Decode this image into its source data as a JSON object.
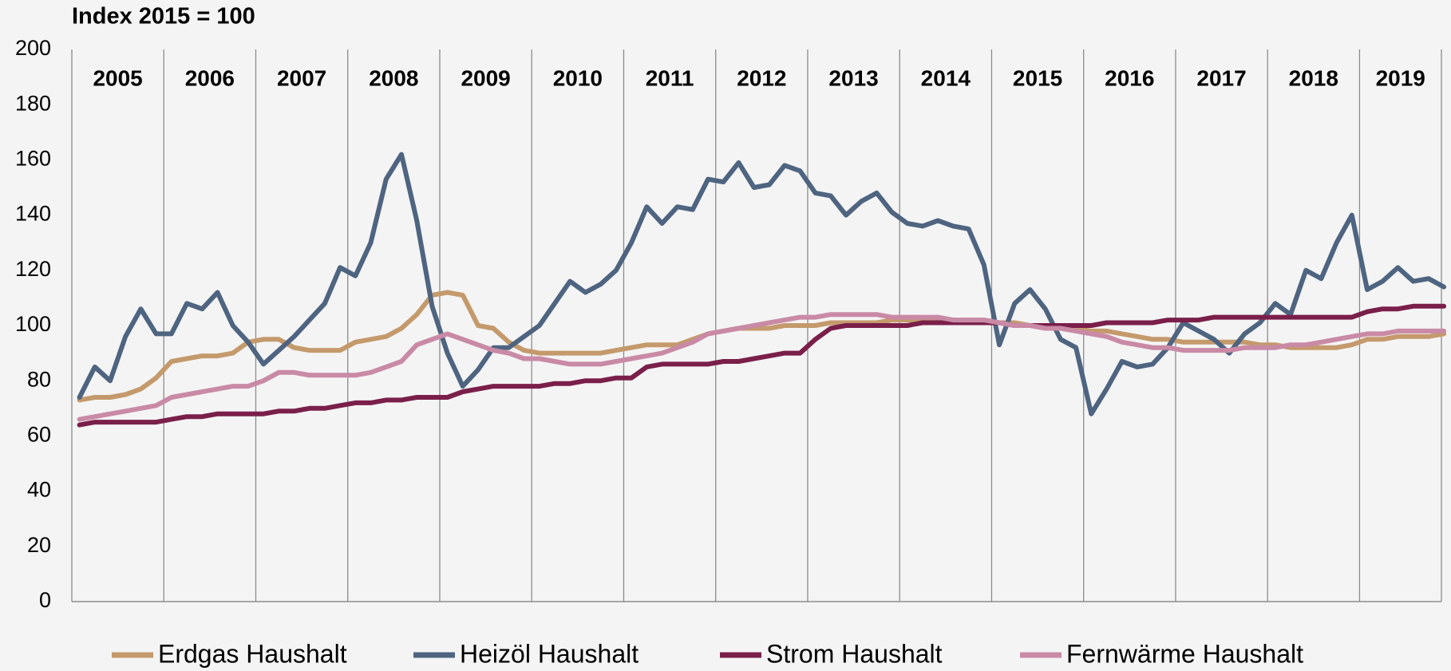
{
  "chart_data": {
    "type": "line",
    "title": "Index 2015 = 100",
    "years": [
      "2005",
      "2006",
      "2007",
      "2008",
      "2009",
      "2010",
      "2011",
      "2012",
      "2013",
      "2014",
      "2015",
      "2016",
      "2017",
      "2018",
      "2019"
    ],
    "ylim": [
      0,
      200
    ],
    "yticks": [
      0,
      20,
      40,
      60,
      80,
      100,
      120,
      140,
      160,
      180,
      200
    ],
    "series": [
      {
        "name": "Erdgas Haushalt",
        "color": "#c49a6c",
        "values": [
          73,
          74,
          74,
          75,
          77,
          81,
          87,
          88,
          89,
          89,
          90,
          94,
          95,
          95,
          92,
          91,
          91,
          91,
          94,
          95,
          96,
          99,
          104,
          111,
          112,
          111,
          100,
          99,
          94,
          91,
          90,
          90,
          90,
          90,
          90,
          91,
          92,
          93,
          93,
          93,
          95,
          97,
          98,
          99,
          99,
          99,
          100,
          100,
          100,
          101,
          101,
          101,
          101,
          102,
          102,
          102,
          102,
          102,
          102,
          102,
          101,
          101,
          100,
          100,
          99,
          99,
          98,
          98,
          97,
          96,
          95,
          95,
          94,
          94,
          94,
          94,
          94,
          93,
          93,
          92,
          92,
          92,
          92,
          93,
          95,
          95,
          96,
          96,
          96,
          97
        ]
      },
      {
        "name": "Heizöl Haushalt",
        "color": "#4e6480",
        "values": [
          74,
          85,
          80,
          96,
          106,
          97,
          97,
          108,
          106,
          112,
          100,
          94,
          86,
          91,
          96,
          102,
          108,
          121,
          118,
          130,
          153,
          162,
          138,
          107,
          90,
          78,
          84,
          92,
          92,
          96,
          100,
          108,
          116,
          112,
          115,
          120,
          130,
          143,
          137,
          143,
          142,
          153,
          152,
          159,
          150,
          151,
          158,
          156,
          148,
          147,
          140,
          145,
          148,
          141,
          137,
          136,
          138,
          136,
          135,
          122,
          93,
          108,
          113,
          106,
          95,
          92,
          68,
          77,
          87,
          85,
          86,
          92,
          101,
          98,
          95,
          90,
          97,
          101,
          108,
          104,
          120,
          117,
          130,
          140,
          113,
          116,
          121,
          116,
          117,
          114
        ]
      },
      {
        "name": "Strom Haushalt",
        "color": "#7a1f4a",
        "values": [
          64,
          65,
          65,
          65,
          65,
          65,
          66,
          67,
          67,
          68,
          68,
          68,
          68,
          69,
          69,
          70,
          70,
          71,
          72,
          72,
          73,
          73,
          74,
          74,
          74,
          76,
          77,
          78,
          78,
          78,
          78,
          79,
          79,
          80,
          80,
          81,
          81,
          85,
          86,
          86,
          86,
          86,
          87,
          87,
          88,
          89,
          90,
          90,
          95,
          99,
          100,
          100,
          100,
          100,
          100,
          101,
          101,
          101,
          101,
          101,
          101,
          100,
          100,
          100,
          100,
          100,
          100,
          101,
          101,
          101,
          101,
          102,
          102,
          102,
          103,
          103,
          103,
          103,
          103,
          103,
          103,
          103,
          103,
          103,
          105,
          106,
          106,
          107,
          107,
          107
        ]
      },
      {
        "name": "Fernwärme Haushalt",
        "color": "#c98aa6",
        "values": [
          66,
          67,
          68,
          69,
          70,
          71,
          74,
          75,
          76,
          77,
          78,
          78,
          80,
          83,
          83,
          82,
          82,
          82,
          82,
          83,
          85,
          87,
          93,
          95,
          97,
          95,
          93,
          91,
          90,
          88,
          88,
          87,
          86,
          86,
          86,
          87,
          88,
          89,
          90,
          92,
          94,
          97,
          98,
          99,
          100,
          101,
          102,
          103,
          103,
          104,
          104,
          104,
          104,
          103,
          103,
          103,
          103,
          102,
          102,
          102,
          101,
          100,
          100,
          99,
          99,
          98,
          97,
          96,
          94,
          93,
          92,
          92,
          91,
          91,
          91,
          91,
          92,
          92,
          92,
          93,
          93,
          94,
          95,
          96,
          97,
          97,
          98,
          98,
          98,
          98
        ]
      }
    ]
  }
}
